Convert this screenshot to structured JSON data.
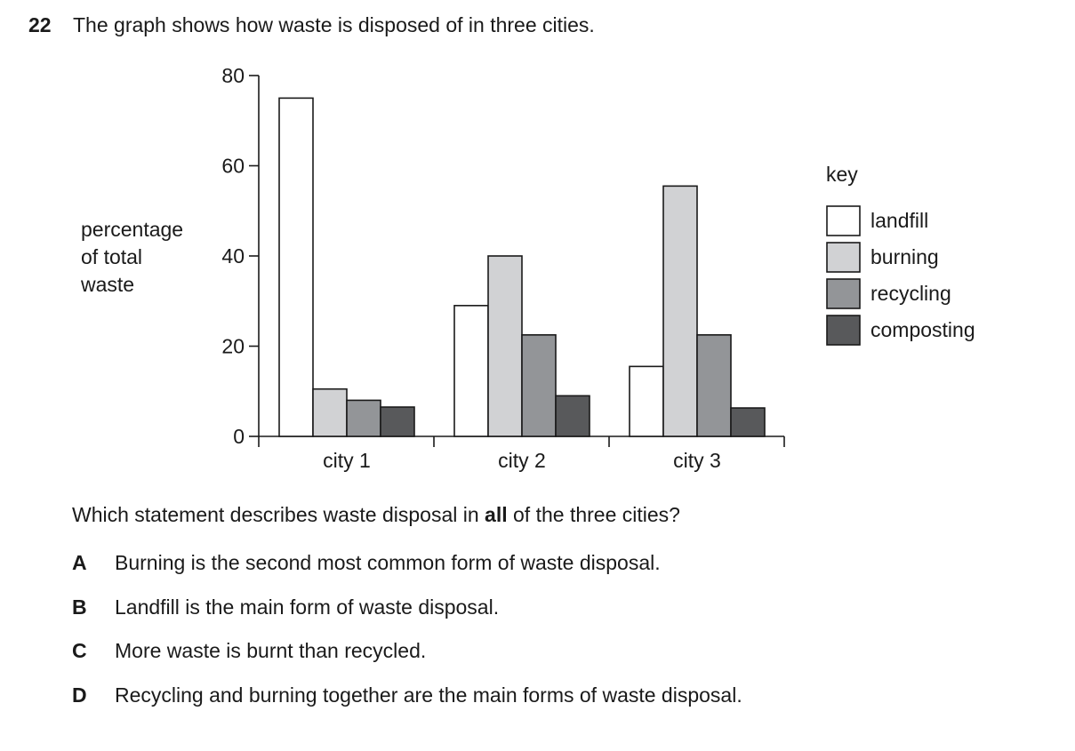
{
  "question": {
    "number": "22",
    "text": "The graph shows how waste is disposed of in three cities.",
    "prompt_before": "Which statement describes waste disposal in ",
    "prompt_bold": "all",
    "prompt_after": " of the three cities?",
    "options": [
      {
        "letter": "A",
        "text": "Burning is the second most common form of waste disposal."
      },
      {
        "letter": "B",
        "text": "Landfill is the main form of waste disposal."
      },
      {
        "letter": "C",
        "text": "More waste is burnt than recycled."
      },
      {
        "letter": "D",
        "text": "Recycling and burning together are the main forms of waste disposal."
      }
    ]
  },
  "chart_data": {
    "type": "bar",
    "ylabel_lines": [
      "percentage",
      "of total",
      "waste"
    ],
    "xlabel": "",
    "ylim": [
      0,
      80
    ],
    "yticks": [
      0,
      20,
      40,
      60,
      80
    ],
    "categories": [
      "city 1",
      "city 2",
      "city 3"
    ],
    "legend_title": "key",
    "legend_position": "right",
    "grid": false,
    "series": [
      {
        "name": "landfill",
        "color": "#ffffff",
        "values": [
          75,
          29,
          15.5
        ]
      },
      {
        "name": "burning",
        "color": "#d1d2d4",
        "values": [
          10.5,
          40,
          55.5
        ]
      },
      {
        "name": "recycling",
        "color": "#939598",
        "values": [
          8,
          22.5,
          22.5
        ]
      },
      {
        "name": "composting",
        "color": "#58595b",
        "values": [
          6.5,
          9,
          6.3
        ]
      }
    ]
  }
}
